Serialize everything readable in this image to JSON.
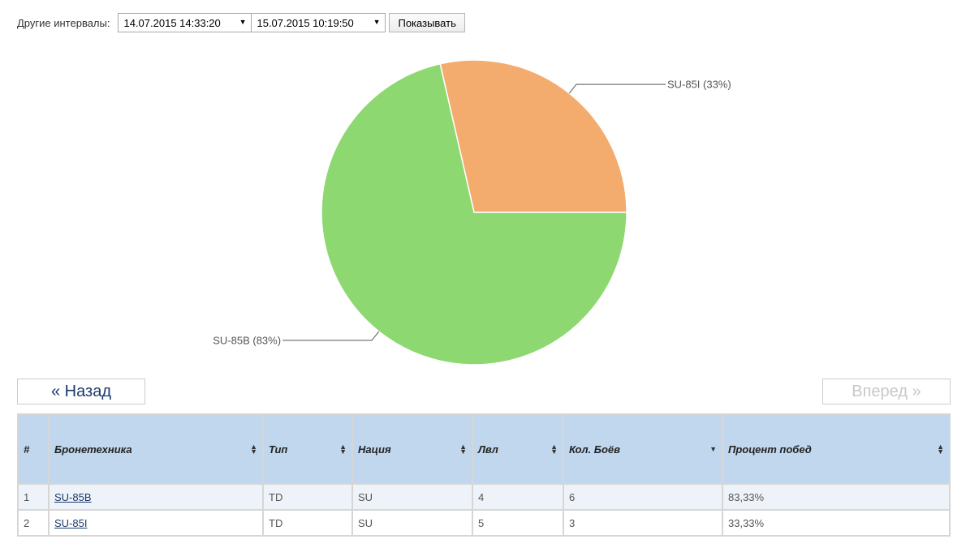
{
  "filter": {
    "label": "Другие интервалы:",
    "date_from": "14.07.2015 14:33:20",
    "date_to": "15.07.2015 10:19:50",
    "show_button": "Показывать"
  },
  "chart_data": {
    "type": "pie",
    "slices": [
      {
        "label": "SU-85I (33%)",
        "value": 33.33,
        "color": "#f4ab6e"
      },
      {
        "label": "SU-85B (83%)",
        "value": 83.33,
        "color": "#8dd870"
      }
    ]
  },
  "pager": {
    "prev": "« Назад",
    "next": "Вперед »"
  },
  "table": {
    "headers": [
      "#",
      "Бронетехника",
      "Тип",
      "Нация",
      "Лвл",
      "Кол. Боёв",
      "Процент побед"
    ],
    "rows": [
      [
        "1",
        "SU-85B",
        "TD",
        "SU",
        "4",
        "6",
        "83,33%"
      ],
      [
        "2",
        "SU-85I",
        "TD",
        "SU",
        "5",
        "3",
        "33,33%"
      ]
    ]
  }
}
